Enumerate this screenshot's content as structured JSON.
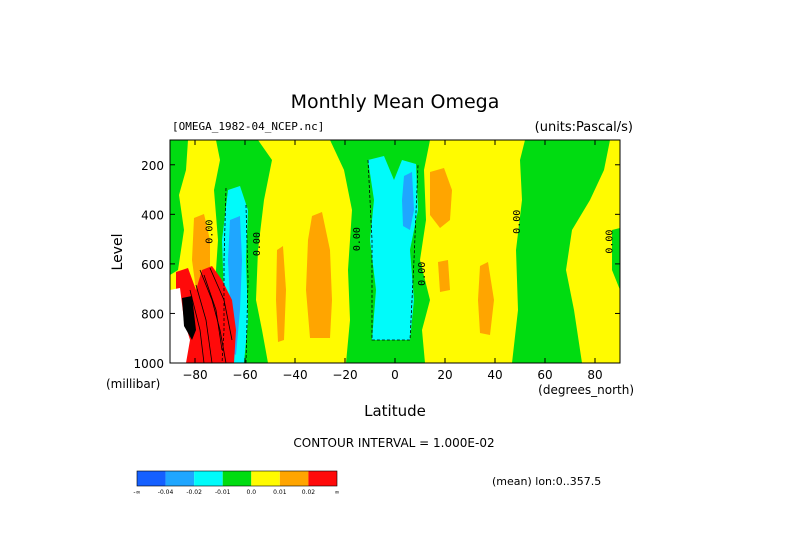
{
  "chart_data": {
    "type": "heatmap",
    "title": "Monthly Mean Omega",
    "dataset_label": "[OMEGA_1982-04_NCEP.nc]",
    "units_label": "(units:Pascal/s)",
    "xlabel": "Latitude",
    "ylabel": "Level",
    "x_unit_label": "(degrees_north)",
    "y_unit_label": "(millibar)",
    "xlim": [
      -90,
      90
    ],
    "ylim": [
      1000,
      100
    ],
    "x_ticks": [
      -80,
      -60,
      -40,
      -20,
      0,
      20,
      40,
      60,
      80
    ],
    "y_ticks": [
      200,
      400,
      600,
      800,
      1000
    ],
    "contour_interval_label": "CONTOUR INTERVAL = 1.000E-02",
    "mean_label": "(mean) lon:0..357.5",
    "contour_labels": [
      {
        "text": "0.00",
        "lat": -73,
        "level": 470
      },
      {
        "text": "0.00",
        "lat": -54,
        "level": 520
      },
      {
        "text": "0.00",
        "lat": -14,
        "level": 500
      },
      {
        "text": "0.00",
        "lat": 12,
        "level": 640
      },
      {
        "text": "0.00",
        "lat": 50,
        "level": 430
      },
      {
        "text": "0.00",
        "lat": 87,
        "level": 510
      }
    ],
    "colorbar": {
      "colors": [
        "#1560ff",
        "#1fa6ff",
        "#00fbfa",
        "#00dc11",
        "#fffb00",
        "#ffa500",
        "#ff0a0a"
      ],
      "labels": [
        "-∞",
        "-0.04",
        "-0.02",
        "-0.01",
        "0.0",
        "0.01",
        "0.02",
        "∞"
      ]
    },
    "regions": [
      {
        "value": "0.0 to 0.01",
        "color": "#fffb00",
        "description": "background"
      },
      {
        "value": "-0.01 to 0.0",
        "color": "#00dc11",
        "lat": [
          -90,
          -85
        ],
        "level": [
          100,
          1000
        ]
      },
      {
        "value": "-0.01 to 0.0",
        "color": "#00dc11",
        "lat": [
          -70,
          -55
        ],
        "level": [
          100,
          1000
        ]
      },
      {
        "value": "-0.01 to 0.0",
        "color": "#00dc11",
        "lat": [
          -22,
          12
        ],
        "level": [
          100,
          1000
        ]
      },
      {
        "value": "-0.01 to 0.0",
        "color": "#00dc11",
        "lat": [
          50,
          75
        ],
        "level": [
          100,
          1000
        ]
      },
      {
        "value": "-0.02 to -0.01",
        "color": "#00fbfa",
        "lat": [
          -66,
          -58
        ],
        "level": [
          300,
          1000
        ]
      },
      {
        "value": "-0.02 to -0.01",
        "color": "#00fbfa",
        "lat": [
          -12,
          6
        ],
        "level": [
          200,
          850
        ]
      },
      {
        "value": "-0.04 to -0.02",
        "color": "#1fa6ff",
        "lat": [
          -65,
          -61
        ],
        "level": [
          450,
          950
        ]
      },
      {
        "value": "-0.04 to -0.02",
        "color": "#1fa6ff",
        "lat": [
          4,
          8
        ],
        "level": [
          250,
          450
        ]
      },
      {
        "value": "0.01 to 0.02",
        "color": "#ffa500",
        "lat": [
          -79,
          -73
        ],
        "level": [
          350,
          700
        ]
      },
      {
        "value": "0.01 to 0.02",
        "color": "#ffa500",
        "lat": [
          -47,
          -45
        ],
        "level": [
          500,
          900
        ]
      },
      {
        "value": "0.01 to 0.02",
        "color": "#ffa500",
        "lat": [
          -33,
          -28
        ],
        "level": [
          300,
          850
        ]
      },
      {
        "value": "0.01 to 0.02",
        "color": "#ffa500",
        "lat": [
          14,
          22
        ],
        "level": [
          200,
          450
        ]
      },
      {
        "value": "0.01 to 0.02",
        "color": "#ffa500",
        "lat": [
          37,
          41
        ],
        "level": [
          400,
          900
        ]
      },
      {
        "value": "> 0.02",
        "color": "#ff0a0a",
        "lat": [
          -90,
          -60
        ],
        "level": [
          600,
          1000
        ]
      }
    ]
  }
}
